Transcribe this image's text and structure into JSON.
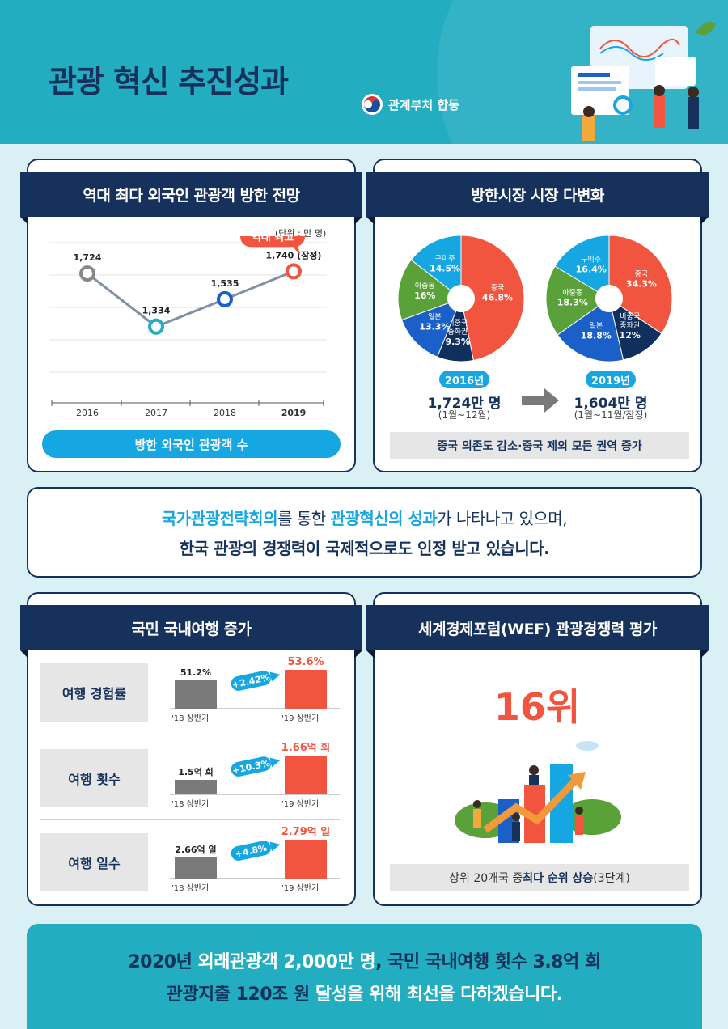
{
  "header": {
    "title": "관광 혁신 추진성과",
    "ministry": "관계부처 합동"
  },
  "section1": {
    "title": "역대 최다 외국인 관광객 방한 전망",
    "unit": "(단위 : 만 명)",
    "highlight": "역대 최고",
    "footer_pill": "방한 외국인 관광객 수"
  },
  "section2": {
    "title": "방한시장 시장 다변화",
    "year_2016": "2016년",
    "total_2016": "1,724만 명",
    "range_2016": "(1월~12월)",
    "year_2019": "2019년",
    "total_2019": "1,604만 명",
    "range_2019": "(1월~11월/잠정)",
    "summary": "중국 의존도 감소·중국 제외 모든 권역 증가"
  },
  "message": {
    "line1_a": "국가관광전략회의",
    "line1_b": "를 통한 ",
    "line1_c": "관광혁신의 성과",
    "line1_d": "가 나타나고 있으며,",
    "line2": "한국 관광의 경쟁력이 국제적으로도 인정 받고 있습니다."
  },
  "section3": {
    "title": "국민 국내여행 증가",
    "period_prev": "'18 상반기",
    "period_curr": "'19 상반기",
    "rows": [
      {
        "label": "여행 경험률",
        "prev": "51.2%",
        "change": "+2.42%",
        "curr": "53.6%",
        "prev_ratio": 0.72
      },
      {
        "label": "여행 횟수",
        "prev": "1.5억 회",
        "change": "+10.3%",
        "curr": "1.66억 회",
        "prev_ratio": 0.38
      },
      {
        "label": "여행 일수",
        "prev": "2.66억 일",
        "change": "+4.8%",
        "curr": "2.79억 일",
        "prev_ratio": 0.55
      }
    ]
  },
  "section4": {
    "title": "세계경제포럼(WEF) 관광경쟁력 평가",
    "rank": "16위",
    "note_a": "상위 20개국 중 ",
    "note_b": "최다 순위 상승",
    "note_c": " (3단계)"
  },
  "footer": {
    "line1_a": "2020년 ",
    "line1_b": "외래관광객 2,000만 명",
    "line1_c": ", 국민 국내여행 횟수 3.8억 회",
    "line2_a": "관광지출 120조 원 ",
    "line2_b": "달성을 위해 최선을 다하겠습니다."
  },
  "chart_data": [
    {
      "type": "line",
      "categories": [
        "2016",
        "2017",
        "2018",
        "2019"
      ],
      "values": [
        1724,
        1334,
        1535,
        1740
      ],
      "value_labels": [
        "1,724",
        "1,334",
        "1,535",
        "1,740 (잠정)"
      ],
      "point_colors": [
        "#888888",
        "#22adc1",
        "#1b5fc9",
        "#f2553f"
      ],
      "ylim": [
        1000,
        1950
      ]
    },
    {
      "type": "pie",
      "year": "2016",
      "slices": [
        {
          "name": "중국",
          "value": 46.8,
          "label": "46.8%",
          "color": "#f2553f"
        },
        {
          "name": "비중국 중화권",
          "value": 9.3,
          "label": "9.3%",
          "color": "#0f2f5c"
        },
        {
          "name": "일본",
          "value": 13.3,
          "label": "13.3%",
          "color": "#1b5fc9"
        },
        {
          "name": "아중동",
          "value": 16,
          "label": "16%",
          "color": "#5aa13a"
        },
        {
          "name": "구미주",
          "value": 14.5,
          "label": "14.5%",
          "color": "#16a6e2"
        }
      ]
    },
    {
      "type": "pie",
      "year": "2019",
      "slices": [
        {
          "name": "중국",
          "value": 34.3,
          "label": "34.3%",
          "color": "#f2553f"
        },
        {
          "name": "비중국 중화권",
          "value": 12,
          "label": "12%",
          "color": "#0f2f5c"
        },
        {
          "name": "일본",
          "value": 18.8,
          "label": "18.8%",
          "color": "#1b5fc9"
        },
        {
          "name": "아중동",
          "value": 18.3,
          "label": "18.3%",
          "color": "#5aa13a"
        },
        {
          "name": "구미주",
          "value": 16.4,
          "label": "16.4%",
          "color": "#16a6e2"
        }
      ]
    }
  ]
}
